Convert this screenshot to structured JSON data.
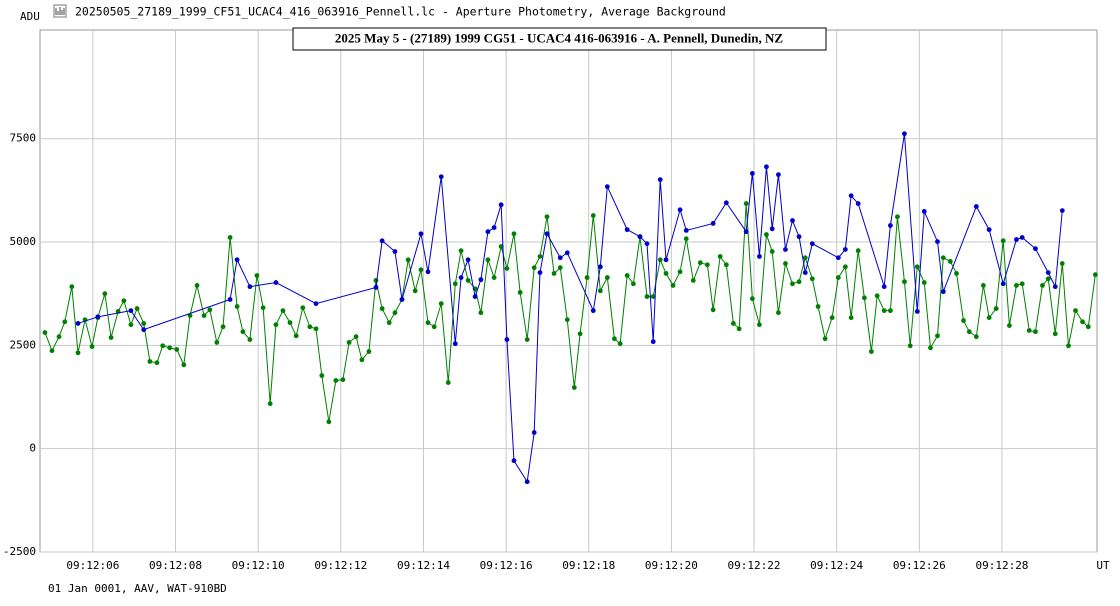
{
  "window_title": "20250505_27189_1999_CF51_UCAC4_416_063916_Pennell.lc - Aperture Photometry, Average Background",
  "footer": "01 Jan 0001, AAV, WAT-910BD",
  "chart_data": {
    "type": "line",
    "title": "2025 May 5 - (27189) 1999 CG51 - UCAC4 416-063916 - A. Pennell, Dunedin, NZ",
    "ylabel": "ADU",
    "xlabel": "UT",
    "xlim": [
      4.72,
      30.3
    ],
    "ylim": [
      -2500,
      10130
    ],
    "xticks": [
      {
        "value": 6,
        "label": "09:12:06"
      },
      {
        "value": 8,
        "label": "09:12:08"
      },
      {
        "value": 10,
        "label": "09:12:10"
      },
      {
        "value": 12,
        "label": "09:12:12"
      },
      {
        "value": 14,
        "label": "09:12:14"
      },
      {
        "value": 16,
        "label": "09:12:16"
      },
      {
        "value": 18,
        "label": "09:12:18"
      },
      {
        "value": 20,
        "label": "09:12:20"
      },
      {
        "value": 22,
        "label": "09:12:22"
      },
      {
        "value": 24,
        "label": "09:12:24"
      },
      {
        "value": 26,
        "label": "09:12:26"
      },
      {
        "value": 28,
        "label": "09:12:28"
      }
    ],
    "yticks": [
      -2500,
      0,
      2500,
      5000,
      7500
    ],
    "grid": true,
    "series": [
      {
        "color": "#008000",
        "x": [
          4.84,
          5.01,
          5.18,
          5.32,
          5.49,
          5.64,
          5.81,
          5.98,
          6.12,
          6.29,
          6.44,
          6.61,
          6.75,
          6.92,
          7.07,
          7.23,
          7.38,
          7.55,
          7.69,
          7.86,
          8.03,
          8.2,
          8.35,
          8.52,
          8.69,
          8.83,
          9.0,
          9.15,
          9.32,
          9.49,
          9.63,
          9.8,
          9.97,
          10.12,
          10.29,
          10.43,
          10.6,
          10.77,
          10.92,
          11.08,
          11.25,
          11.4,
          11.54,
          11.71,
          11.88,
          12.05,
          12.2,
          12.37,
          12.51,
          12.68,
          12.85,
          13.0,
          13.17,
          13.31,
          13.48,
          13.63,
          13.8,
          13.94,
          14.11,
          14.26,
          14.43,
          14.6,
          14.77,
          14.91,
          15.08,
          15.25,
          15.39,
          15.56,
          15.71,
          15.88,
          16.02,
          16.19,
          16.34,
          16.51,
          16.68,
          16.82,
          16.99,
          17.16,
          17.31,
          17.48,
          17.65,
          17.79,
          17.96,
          18.11,
          18.28,
          18.45,
          18.62,
          18.76,
          18.93,
          19.08,
          19.24,
          19.41,
          19.56,
          19.73,
          19.87,
          20.04,
          20.21,
          20.36,
          20.53,
          20.7,
          20.87,
          21.01,
          21.18,
          21.33,
          21.5,
          21.64,
          21.81,
          21.96,
          22.13,
          22.3,
          22.44,
          22.59,
          22.76,
          22.93,
          23.09,
          23.24,
          23.41,
          23.55,
          23.72,
          23.89,
          24.04,
          24.21,
          24.35,
          24.52,
          24.67,
          24.84,
          24.98,
          25.15,
          25.3,
          25.47,
          25.64,
          25.78,
          25.95,
          26.12,
          26.27,
          26.44,
          26.58,
          26.75,
          26.9,
          27.07,
          27.21,
          27.38,
          27.55,
          27.69,
          27.86,
          28.03,
          28.18,
          28.35,
          28.49,
          28.66,
          28.81,
          28.98,
          29.12,
          29.29,
          29.46,
          29.61,
          29.78,
          29.95,
          30.09,
          30.26
        ],
        "values": [
          2810,
          2370,
          2710,
          3070,
          3920,
          2320,
          3120,
          2470,
          3170,
          3750,
          2690,
          3320,
          3580,
          3000,
          3390,
          3030,
          2110,
          2080,
          2490,
          2440,
          2400,
          2030,
          3220,
          3950,
          3220,
          3360,
          2570,
          2950,
          5110,
          3440,
          2830,
          2640,
          4190,
          3410,
          1090,
          3000,
          3340,
          3050,
          2730,
          3410,
          2950,
          2900,
          1770,
          650,
          1650,
          1670,
          2570,
          2710,
          2150,
          2350,
          4070,
          3390,
          3050,
          3290,
          3610,
          4570,
          3820,
          4330,
          3050,
          2950,
          3510,
          1600,
          3990,
          4790,
          4070,
          3870,
          3290,
          4570,
          4140,
          4890,
          4360,
          5200,
          3780,
          2640,
          4380,
          4650,
          5610,
          4240,
          4380,
          3120,
          1480,
          2780,
          4140,
          5640,
          3820,
          4140,
          2660,
          2540,
          4190,
          3990,
          5130,
          3680,
          3680,
          4570,
          4240,
          3950,
          4280,
          5080,
          4070,
          4500,
          4450,
          3360,
          4650,
          4450,
          3030,
          2900,
          5930,
          3630,
          3000,
          5180,
          4770,
          3290,
          4480,
          3990,
          4040,
          4620,
          4110,
          3440,
          2660,
          3170,
          4140,
          4400,
          3170,
          4790,
          3650,
          2350,
          3700,
          3340,
          3340,
          5610,
          4040,
          2490,
          4400,
          4020,
          2440,
          2730,
          4620,
          4530,
          4240,
          3100,
          2830,
          2710,
          3950,
          3170,
          3390,
          5030,
          2980,
          3950,
          3990,
          2860,
          2830,
          3950,
          4110,
          2780,
          4480,
          2490,
          3340,
          3070,
          2950,
          4210
        ]
      },
      {
        "color": "#0000cc",
        "x": [
          5.64,
          6.12,
          6.92,
          7.23,
          9.32,
          9.49,
          9.8,
          10.43,
          11.4,
          12.85,
          13.0,
          13.31,
          13.48,
          13.94,
          14.11,
          14.43,
          14.77,
          14.91,
          15.08,
          15.25,
          15.39,
          15.56,
          15.71,
          15.88,
          16.02,
          16.19,
          16.51,
          16.68,
          16.82,
          16.99,
          17.31,
          17.48,
          18.11,
          18.28,
          18.45,
          18.93,
          19.24,
          19.41,
          19.56,
          19.73,
          19.87,
          20.21,
          20.36,
          21.01,
          21.33,
          21.81,
          21.96,
          22.13,
          22.3,
          22.44,
          22.59,
          22.76,
          22.93,
          23.09,
          23.24,
          23.41,
          24.04,
          24.21,
          24.35,
          24.52,
          25.15,
          25.3,
          25.64,
          25.95,
          26.12,
          26.44,
          26.58,
          27.38,
          27.69,
          28.03,
          28.35,
          28.49,
          28.81,
          29.12,
          29.29,
          29.46
        ],
        "values": [
          3030,
          3190,
          3340,
          2880,
          3610,
          4570,
          3920,
          4020,
          3510,
          3900,
          5030,
          4770,
          3610,
          5200,
          4280,
          6580,
          2540,
          4140,
          4570,
          3680,
          4090,
          5250,
          5350,
          5900,
          2640,
          -290,
          -800,
          390,
          4260,
          5200,
          4620,
          4740,
          3340,
          4400,
          6340,
          5300,
          5130,
          4960,
          2590,
          6510,
          4570,
          5780,
          5280,
          5450,
          5950,
          5250,
          6660,
          4650,
          6820,
          5320,
          6630,
          4820,
          5520,
          5130,
          4260,
          4960,
          4620,
          4820,
          6120,
          5930,
          3920,
          5400,
          7620,
          3320,
          5740,
          5010,
          3800,
          5860,
          5300,
          3990,
          5060,
          5110,
          4840,
          4260,
          3920,
          5760
        ]
      }
    ]
  }
}
